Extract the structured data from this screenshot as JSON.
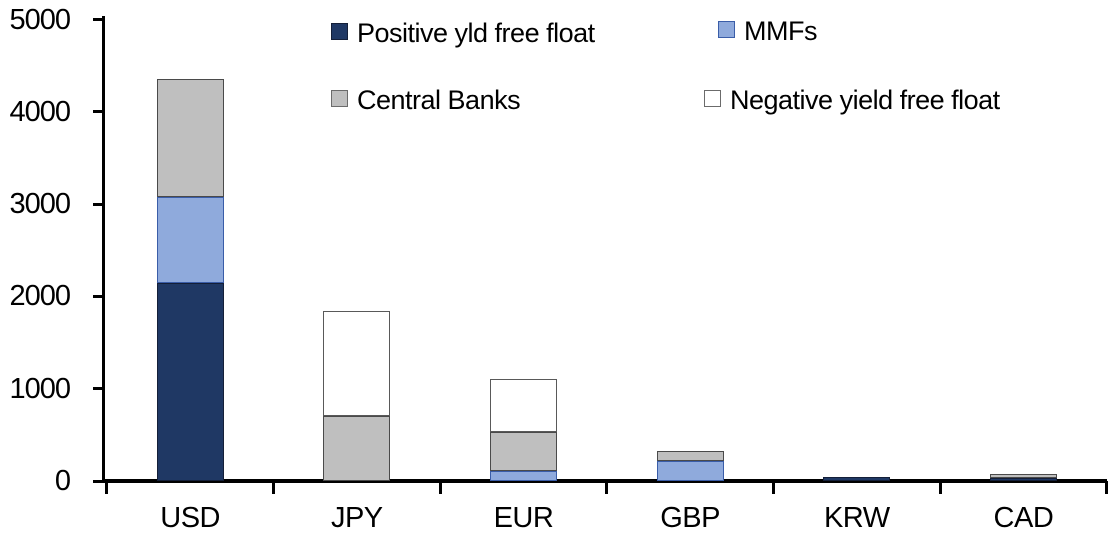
{
  "chart_data": {
    "type": "bar",
    "stacked": true,
    "title": "",
    "xlabel": "",
    "ylabel": "",
    "categories": [
      "USD",
      "JPY",
      "EUR",
      "GBP",
      "KRW",
      "CAD"
    ],
    "series": [
      {
        "name": "Positive yld free float",
        "color": "#1F3864",
        "border": "#141F38",
        "values": [
          2150,
          0,
          0,
          0,
          40,
          35
        ]
      },
      {
        "name": "MMFs",
        "color": "#8FAADC",
        "border": "#3A5DA8",
        "values": [
          930,
          0,
          110,
          215,
          0,
          0
        ]
      },
      {
        "name": "Central Banks",
        "color": "#BFBFBF",
        "border": "#4A4A4A",
        "values": [
          1280,
          700,
          425,
          115,
          0,
          40
        ]
      },
      {
        "name": "Negative yield free float",
        "color": "#FFFFFF",
        "border": "#595959",
        "values": [
          0,
          1140,
          575,
          0,
          0,
          0
        ]
      }
    ],
    "totals": [
      4360,
      1840,
      1110,
      330,
      40,
      75
    ],
    "ylim": [
      0,
      5000
    ],
    "ytick_interval": 1000,
    "yticks": [
      "0",
      "1000",
      "2000",
      "3000",
      "4000",
      "5000"
    ],
    "grid": false,
    "legend_position": "top",
    "axis_color": "#000000",
    "background_color": "#FFFFFF"
  }
}
